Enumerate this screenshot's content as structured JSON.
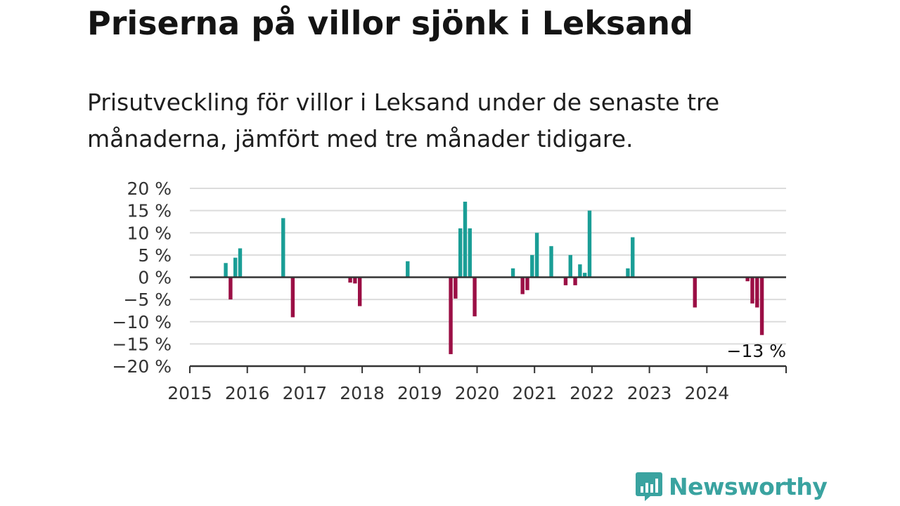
{
  "header": {
    "title": "Priserna på villor sjönk i Leksand",
    "subtitle": "Prisutveckling för villor i Leksand under de senaste tre månaderna, jämfört med tre månader tidigare."
  },
  "colors": {
    "positive": "#1a9e96",
    "negative": "#9b0f45",
    "grid": "#dcdcdc",
    "axis": "#333333",
    "brand": "#3aa3a0"
  },
  "logo": {
    "name": "Newsworthy",
    "icon": "newsworthy-chart-icon"
  },
  "chart_data": {
    "type": "bar",
    "title": "",
    "xlabel": "",
    "ylabel": "",
    "ylim": [
      -20,
      20
    ],
    "y_ticks": [
      20,
      15,
      10,
      5,
      0,
      -5,
      -10,
      -15,
      -20
    ],
    "y_tick_labels": [
      "20 %",
      "15 %",
      "10 %",
      "5 %",
      "0 %",
      "−5 %",
      "−10 %",
      "−15 %",
      "−20 %"
    ],
    "x_tick_labels": [
      "2015",
      "2016",
      "2017",
      "2018",
      "2019",
      "2020",
      "2021",
      "2022",
      "2023",
      "2024"
    ],
    "grid": true,
    "last_value_label": "−13 %",
    "points": [
      {
        "date": "2015-08",
        "value": 3.2
      },
      {
        "date": "2015-09",
        "value": -5.0
      },
      {
        "date": "2015-10",
        "value": 4.4
      },
      {
        "date": "2015-11",
        "value": 6.5
      },
      {
        "date": "2016-08",
        "value": 13.3
      },
      {
        "date": "2016-10",
        "value": -9.0
      },
      {
        "date": "2017-10",
        "value": -1.2
      },
      {
        "date": "2017-11",
        "value": -1.4
      },
      {
        "date": "2017-12",
        "value": -6.5
      },
      {
        "date": "2018-10",
        "value": 3.6
      },
      {
        "date": "2019-07",
        "value": -17.3
      },
      {
        "date": "2019-08",
        "value": -4.8
      },
      {
        "date": "2019-09",
        "value": 11.0
      },
      {
        "date": "2019-10",
        "value": 17.0
      },
      {
        "date": "2019-11",
        "value": 11.0
      },
      {
        "date": "2019-12",
        "value": -8.8
      },
      {
        "date": "2020-08",
        "value": 2.0
      },
      {
        "date": "2020-10",
        "value": -3.8
      },
      {
        "date": "2020-11",
        "value": -2.9
      },
      {
        "date": "2020-12",
        "value": 5.0
      },
      {
        "date": "2021-01",
        "value": 10.0
      },
      {
        "date": "2021-04",
        "value": 7.0
      },
      {
        "date": "2021-07",
        "value": -1.8
      },
      {
        "date": "2021-08",
        "value": 5.0
      },
      {
        "date": "2021-09",
        "value": -1.8
      },
      {
        "date": "2021-10",
        "value": 2.9
      },
      {
        "date": "2021-11",
        "value": 1.0
      },
      {
        "date": "2021-12",
        "value": 15.0
      },
      {
        "date": "2022-08",
        "value": 2.0
      },
      {
        "date": "2022-09",
        "value": 9.0
      },
      {
        "date": "2023-10",
        "value": -6.8
      },
      {
        "date": "2024-09",
        "value": -0.9
      },
      {
        "date": "2024-10",
        "value": -5.9
      },
      {
        "date": "2024-11",
        "value": -6.8
      },
      {
        "date": "2024-12",
        "value": -13.0
      }
    ]
  }
}
